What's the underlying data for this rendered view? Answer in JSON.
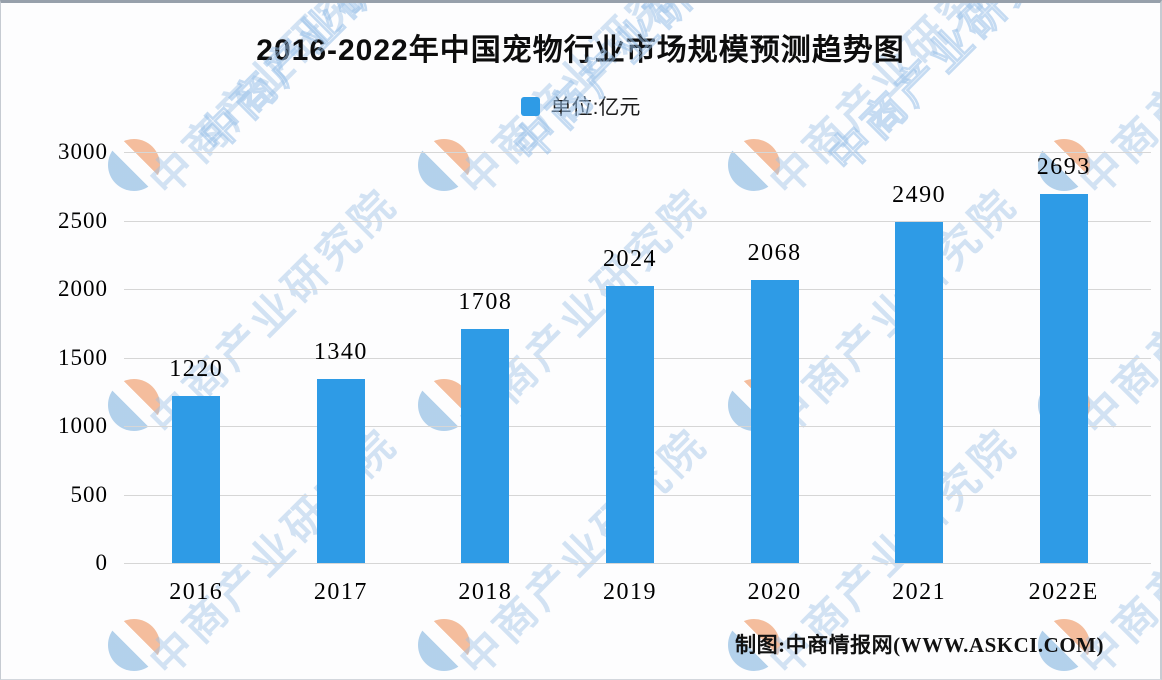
{
  "chart_data": {
    "type": "bar",
    "title": "2016-2022年中国宠物行业市场规模预测趋势图",
    "legend": {
      "label": "单位:亿元",
      "swatch_color": "#2e9be6",
      "position": "top-center"
    },
    "categories": [
      "2016",
      "2017",
      "2018",
      "2019",
      "2020",
      "2021",
      "2022E"
    ],
    "values": [
      1220,
      1340,
      1708,
      2024,
      2068,
      2490,
      2693
    ],
    "yticks": [
      0,
      500,
      1000,
      1500,
      2000,
      2500,
      3000
    ],
    "ylim": [
      0,
      3000
    ],
    "grid": true,
    "bar_color": "#2e9be6",
    "value_labels_shown": true
  },
  "footer": {
    "credit": "制图:中商情报网(WWW.ASKCI.COM)"
  },
  "watermark": {
    "text": "中商产业研究院",
    "text_color": "#9fc3e6",
    "logo_orange": "#f2b28c",
    "logo_blue": "#a6c9e8"
  }
}
